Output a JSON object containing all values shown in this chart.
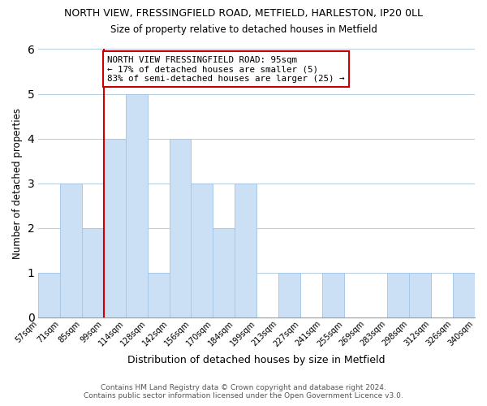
{
  "title": "NORTH VIEW, FRESSINGFIELD ROAD, METFIELD, HARLESTON, IP20 0LL",
  "subtitle": "Size of property relative to detached houses in Metfield",
  "xlabel": "Distribution of detached houses by size in Metfield",
  "ylabel": "Number of detached properties",
  "bar_labels": [
    "57sqm",
    "71sqm",
    "85sqm",
    "99sqm",
    "114sqm",
    "128sqm",
    "142sqm",
    "156sqm",
    "170sqm",
    "184sqm",
    "199sqm",
    "213sqm",
    "227sqm",
    "241sqm",
    "255sqm",
    "269sqm",
    "283sqm",
    "298sqm",
    "312sqm",
    "326sqm",
    "340sqm"
  ],
  "bar_values": [
    1,
    3,
    2,
    4,
    5,
    1,
    4,
    3,
    2,
    3,
    0,
    1,
    0,
    1,
    0,
    0,
    1,
    1,
    0,
    1
  ],
  "bar_color": "#cce0f5",
  "bar_edge_color": "#a8c8e8",
  "ylim": [
    0,
    6
  ],
  "yticks": [
    0,
    1,
    2,
    3,
    4,
    5,
    6
  ],
  "vline_color": "#cc0000",
  "annotation_text": "NORTH VIEW FRESSINGFIELD ROAD: 95sqm\n← 17% of detached houses are smaller (5)\n83% of semi-detached houses are larger (25) →",
  "annotation_box_color": "#ffffff",
  "annotation_box_edge_color": "#cc0000",
  "footer_line1": "Contains HM Land Registry data © Crown copyright and database right 2024.",
  "footer_line2": "Contains public sector information licensed under the Open Government Licence v3.0.",
  "bg_color": "#ffffff",
  "grid_color": "#b8cfe0"
}
